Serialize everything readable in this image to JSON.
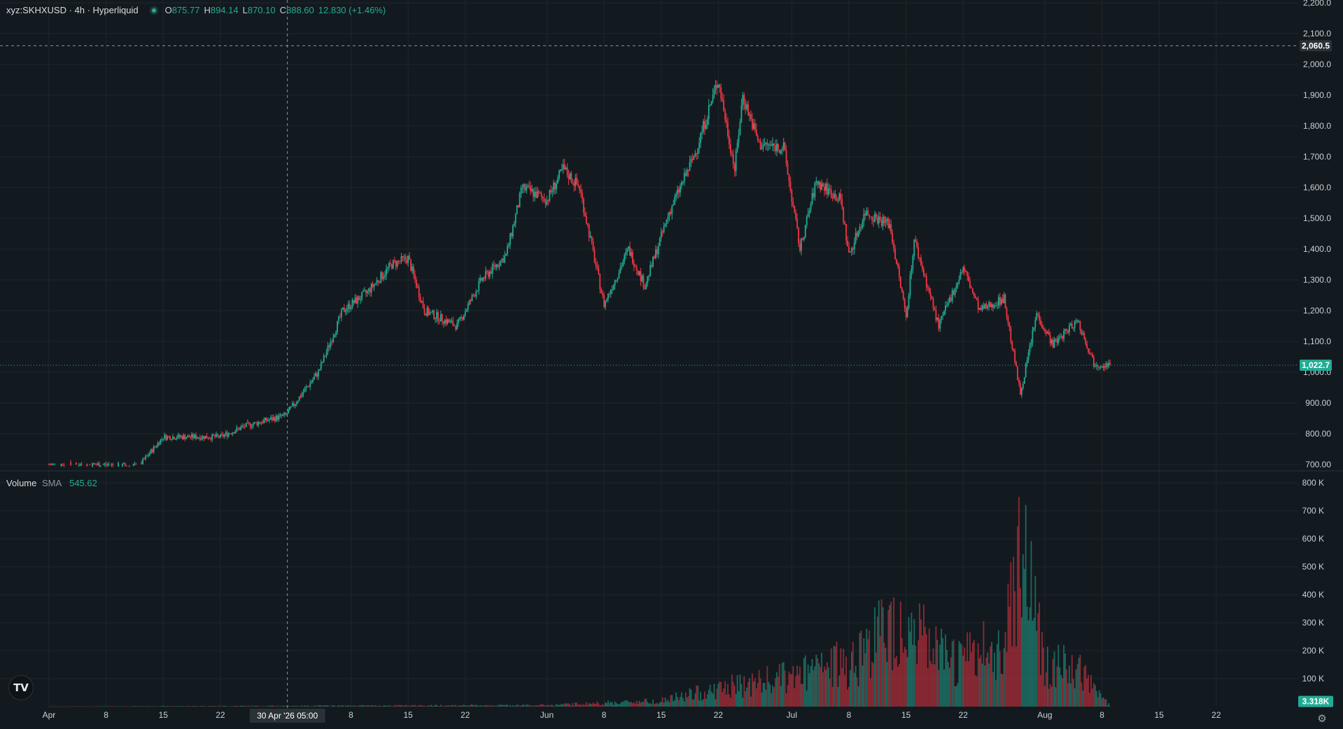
{
  "legend": {
    "symbol": "xyz:SKHXUSD · 4h · Hyperliquid",
    "o_label": "O",
    "o_value": "875.77",
    "h_label": "H",
    "h_value": "894.14",
    "l_label": "L",
    "l_value": "870.10",
    "c_label": "C",
    "c_value": "888.60",
    "change": "12.830 (+1.46%)"
  },
  "volume_legend": {
    "label": "Volume",
    "sma_label": "SMA",
    "sma_value": "545.62"
  },
  "price_axis": {
    "ticks": [
      "2,200.0",
      "2,100.0",
      "2,000.0",
      "1,900.0",
      "1,800.0",
      "1,700.0",
      "1,600.0",
      "1,500.0",
      "1,400.0",
      "1,300.0",
      "1,200.0",
      "1,100.0",
      "1,000.0",
      "900.00",
      "800.00",
      "700.00"
    ],
    "crosshair_label": "2,060.5",
    "last_price_label": "1,022.7"
  },
  "volume_axis": {
    "ticks": [
      "800 K",
      "700 K",
      "600 K",
      "500 K",
      "400 K",
      "300 K",
      "200 K",
      "100 K"
    ],
    "last_volume_label": "3.318K"
  },
  "time_axis": {
    "ticks": [
      "Apr",
      "8",
      "15",
      "22",
      "8",
      "15",
      "22",
      "Jun",
      "8",
      "15",
      "22",
      "Jul",
      "8",
      "15",
      "22",
      "Aug",
      "8",
      "15",
      "22"
    ],
    "crosshair_label": "30 Apr '26   05:00"
  },
  "colors": {
    "up": "#22ab94",
    "down": "#f23645",
    "background": "#131a1f",
    "grid": "#1e262c"
  },
  "icons": {
    "logo": "tradingview-logo-icon",
    "settings": "settings-gear-icon"
  },
  "logo_text": "TV",
  "settings_glyph": "⚙",
  "chart_data": {
    "type": "candlestick",
    "interval": "4h",
    "ylim": [
      690,
      2200
    ],
    "volume_ylim": [
      0,
      800000
    ],
    "grid": true,
    "key_points": [
      {
        "date": "2026-04-01",
        "close": 700
      },
      {
        "date": "2026-04-08",
        "close": 700
      },
      {
        "date": "2026-04-12",
        "close": 695
      },
      {
        "date": "2026-04-15",
        "close": 790
      },
      {
        "date": "2026-04-22",
        "close": 790
      },
      {
        "date": "2026-04-25",
        "close": 825
      },
      {
        "date": "2026-04-30",
        "close": 860
      },
      {
        "date": "2026-05-04",
        "close": 1000
      },
      {
        "date": "2026-05-07",
        "close": 1200
      },
      {
        "date": "2026-05-10",
        "close": 1260
      },
      {
        "date": "2026-05-13",
        "close": 1350
      },
      {
        "date": "2026-05-15",
        "close": 1370
      },
      {
        "date": "2026-05-17",
        "close": 1200
      },
      {
        "date": "2026-05-21",
        "close": 1150
      },
      {
        "date": "2026-05-24",
        "close": 1300
      },
      {
        "date": "2026-05-27",
        "close": 1380
      },
      {
        "date": "2026-05-29",
        "close": 1600
      },
      {
        "date": "2026-06-01",
        "close": 1560
      },
      {
        "date": "2026-06-03",
        "close": 1660
      },
      {
        "date": "2026-06-05",
        "close": 1600
      },
      {
        "date": "2026-06-08",
        "close": 1220
      },
      {
        "date": "2026-06-11",
        "close": 1400
      },
      {
        "date": "2026-06-13",
        "close": 1280
      },
      {
        "date": "2026-06-16",
        "close": 1520
      },
      {
        "date": "2026-06-19",
        "close": 1700
      },
      {
        "date": "2026-06-22",
        "close": 1950
      },
      {
        "date": "2026-06-24",
        "close": 1660
      },
      {
        "date": "2026-06-25",
        "close": 1900
      },
      {
        "date": "2026-06-27",
        "close": 1740
      },
      {
        "date": "2026-06-30",
        "close": 1730
      },
      {
        "date": "2026-07-02",
        "close": 1400
      },
      {
        "date": "2026-07-04",
        "close": 1620
      },
      {
        "date": "2026-07-07",
        "close": 1560
      },
      {
        "date": "2026-07-08",
        "close": 1380
      },
      {
        "date": "2026-07-10",
        "close": 1520
      },
      {
        "date": "2026-07-13",
        "close": 1480
      },
      {
        "date": "2026-07-15",
        "close": 1180
      },
      {
        "date": "2026-07-16",
        "close": 1430
      },
      {
        "date": "2026-07-19",
        "close": 1150
      },
      {
        "date": "2026-07-22",
        "close": 1340
      },
      {
        "date": "2026-07-24",
        "close": 1200
      },
      {
        "date": "2026-07-27",
        "close": 1240
      },
      {
        "date": "2026-07-29",
        "close": 930
      },
      {
        "date": "2026-07-31",
        "close": 1190
      },
      {
        "date": "2026-08-02",
        "close": 1090
      },
      {
        "date": "2026-08-05",
        "close": 1170
      },
      {
        "date": "2026-08-07",
        "close": 1030
      },
      {
        "date": "2026-08-09",
        "close": 1022.7
      }
    ],
    "volume_key_points": [
      {
        "date": "2026-04-01",
        "value": 500
      },
      {
        "date": "2026-06-01",
        "value": 5000
      },
      {
        "date": "2026-06-15",
        "value": 20000
      },
      {
        "date": "2026-06-22",
        "value": 60000
      },
      {
        "date": "2026-07-01",
        "value": 100000
      },
      {
        "date": "2026-07-08",
        "value": 150000
      },
      {
        "date": "2026-07-14",
        "value": 300000
      },
      {
        "date": "2026-07-20",
        "value": 150000
      },
      {
        "date": "2026-07-27",
        "value": 200000
      },
      {
        "date": "2026-07-29",
        "value": 600000
      },
      {
        "date": "2026-08-01",
        "value": 150000
      },
      {
        "date": "2026-08-05",
        "value": 120000
      },
      {
        "date": "2026-08-09",
        "value": 3318
      }
    ]
  }
}
